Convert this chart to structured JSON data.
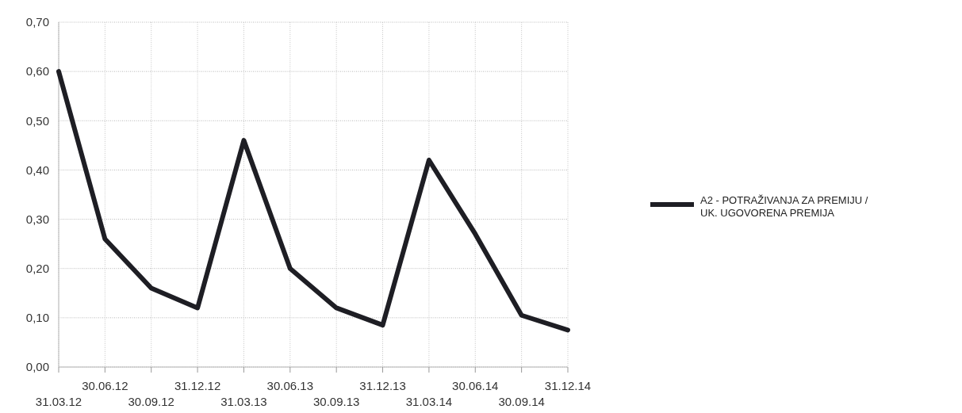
{
  "chart_data": {
    "type": "line",
    "categories": [
      "31.03.12",
      "30.06.12",
      "30.09.12",
      "31.12.12",
      "31.03.13",
      "30.06.13",
      "30.09.13",
      "31.12.13",
      "31.03.14",
      "30.06.14",
      "30.09.14",
      "31.12.14"
    ],
    "series": [
      {
        "name": "A2 - POTRAŽIVANJA ZA PREMIJU / UK. UGOVORENA PREMIJA",
        "color": "#1e1e24",
        "values": [
          0.6,
          0.26,
          0.16,
          0.12,
          0.46,
          0.2,
          0.12,
          0.085,
          0.42,
          0.27,
          0.105,
          0.075
        ]
      }
    ],
    "ylim": [
      0,
      0.7
    ],
    "yticks": [
      {
        "value": 0,
        "label": "0,00"
      },
      {
        "value": 0.1,
        "label": "0,10"
      },
      {
        "value": 0.2,
        "label": "0,20"
      },
      {
        "value": 0.3,
        "label": "0,30"
      },
      {
        "value": 0.4,
        "label": "0,40"
      },
      {
        "value": 0.5,
        "label": "0,50"
      },
      {
        "value": 0.6,
        "label": "0,60"
      },
      {
        "value": 0.7,
        "label": "0,70"
      }
    ],
    "grid": true,
    "legend": "right",
    "line_style": "solid",
    "marker": "none"
  }
}
